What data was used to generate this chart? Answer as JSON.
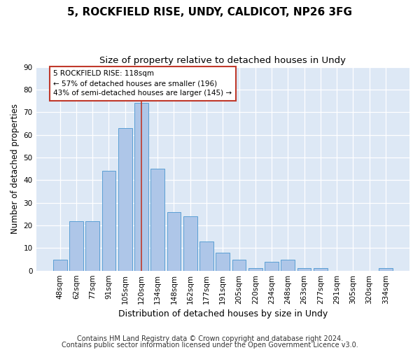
{
  "title1": "5, ROCKFIELD RISE, UNDY, CALDICOT, NP26 3FG",
  "title2": "Size of property relative to detached houses in Undy",
  "xlabel": "Distribution of detached houses by size in Undy",
  "ylabel": "Number of detached properties",
  "categories": [
    "48sqm",
    "62sqm",
    "77sqm",
    "91sqm",
    "105sqm",
    "120sqm",
    "134sqm",
    "148sqm",
    "162sqm",
    "177sqm",
    "191sqm",
    "205sqm",
    "220sqm",
    "234sqm",
    "248sqm",
    "263sqm",
    "277sqm",
    "291sqm",
    "305sqm",
    "320sqm",
    "334sqm"
  ],
  "values": [
    5,
    22,
    22,
    44,
    63,
    74,
    45,
    26,
    24,
    13,
    8,
    5,
    1,
    4,
    5,
    1,
    1,
    0,
    0,
    0,
    1
  ],
  "bar_color": "#aec6e8",
  "bar_edge_color": "#5a9fd4",
  "vline_color": "#c0392b",
  "vline_index": 5,
  "annotation_line1": "5 ROCKFIELD RISE: 118sqm",
  "annotation_line2": "← 57% of detached houses are smaller (196)",
  "annotation_line3": "43% of semi-detached houses are larger (145) →",
  "annotation_box_color": "#ffffff",
  "annotation_box_edge_color": "#c0392b",
  "ylim": [
    0,
    90
  ],
  "yticks": [
    0,
    10,
    20,
    30,
    40,
    50,
    60,
    70,
    80,
    90
  ],
  "footer1": "Contains HM Land Registry data © Crown copyright and database right 2024.",
  "footer2": "Contains public sector information licensed under the Open Government Licence v3.0.",
  "bg_color": "#dde8f5",
  "fig_color": "#ffffff",
  "title1_fontsize": 11,
  "title2_fontsize": 9.5,
  "xlabel_fontsize": 9,
  "ylabel_fontsize": 8.5,
  "tick_fontsize": 7.5,
  "annot_fontsize": 7.5,
  "footer_fontsize": 7
}
